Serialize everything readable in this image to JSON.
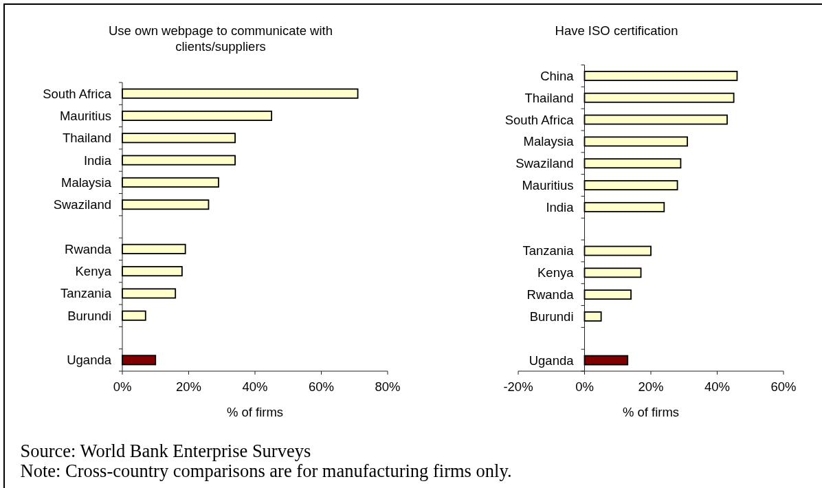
{
  "chart_data": [
    {
      "type": "bar",
      "orientation": "horizontal",
      "title": "Use own webpage to communicate with clients/suppliers",
      "xlabel": "% of firms",
      "categories": [
        "South Africa",
        "Mauritius",
        "Thailand",
        "India",
        "Malaysia",
        "Swaziland",
        null,
        "Rwanda",
        "Kenya",
        "Tanzania",
        "Burundi",
        null,
        "Uganda"
      ],
      "values": [
        71,
        45,
        34,
        34,
        29,
        26,
        null,
        19,
        18,
        16,
        7,
        null,
        10
      ],
      "colors": [
        "#ffffcc",
        "#ffffcc",
        "#ffffcc",
        "#ffffcc",
        "#ffffcc",
        "#ffffcc",
        null,
        "#ffffcc",
        "#ffffcc",
        "#ffffcc",
        "#ffffcc",
        null,
        "#800000"
      ],
      "xlim": [
        0,
        80
      ],
      "xticks": [
        {
          "value": 0,
          "label": "0%"
        },
        {
          "value": 20,
          "label": "20%"
        },
        {
          "value": 40,
          "label": "40%"
        },
        {
          "value": 60,
          "label": "60%"
        },
        {
          "value": 80,
          "label": "80%"
        }
      ]
    },
    {
      "type": "bar",
      "orientation": "horizontal",
      "title": "Have ISO certification",
      "xlabel": "% of firms",
      "categories": [
        "China",
        "Thailand",
        "South Africa",
        "Malaysia",
        "Swaziland",
        "Mauritius",
        "India",
        null,
        "Tanzania",
        "Kenya",
        "Rwanda",
        "Burundi",
        null,
        "Uganda"
      ],
      "values": [
        46,
        45,
        43,
        31,
        29,
        28,
        24,
        null,
        20,
        17,
        14,
        5,
        null,
        13
      ],
      "colors": [
        "#ffffcc",
        "#ffffcc",
        "#ffffcc",
        "#ffffcc",
        "#ffffcc",
        "#ffffcc",
        "#ffffcc",
        null,
        "#ffffcc",
        "#ffffcc",
        "#ffffcc",
        "#ffffcc",
        null,
        "#800000"
      ],
      "xlim": [
        -20,
        60
      ],
      "xticks": [
        {
          "value": -20,
          "label": "-20%"
        },
        {
          "value": 0,
          "label": "0%"
        },
        {
          "value": 20,
          "label": "20%"
        },
        {
          "value": 40,
          "label": "40%"
        },
        {
          "value": 60,
          "label": "60%"
        }
      ],
      "annotations": [
        "Source: World Bank Enterprise Surveys",
        "Note: Cross-country comparisons are for manufacturing firms only."
      ]
    }
  ]
}
